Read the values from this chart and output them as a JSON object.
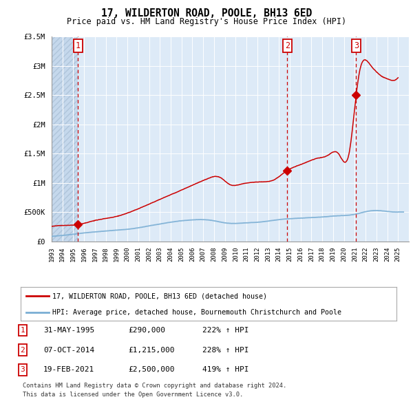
{
  "title": "17, WILDERTON ROAD, POOLE, BH13 6ED",
  "subtitle": "Price paid vs. HM Land Registry's House Price Index (HPI)",
  "legend_line1": "17, WILDERTON ROAD, POOLE, BH13 6ED (detached house)",
  "legend_line2": "HPI: Average price, detached house, Bournemouth Christchurch and Poole",
  "footnote1": "Contains HM Land Registry data © Crown copyright and database right 2024.",
  "footnote2": "This data is licensed under the Open Government Licence v3.0.",
  "sale_color": "#cc0000",
  "hpi_color": "#7aaed4",
  "background_plot": "#ddeaf7",
  "background_hatch": "#c5d8ec",
  "grid_color": "#ffffff",
  "ylim": [
    0,
    3500000
  ],
  "yticks": [
    0,
    500000,
    1000000,
    1500000,
    2000000,
    2500000,
    3000000,
    3500000
  ],
  "ytick_labels": [
    "£0",
    "£500K",
    "£1M",
    "£1.5M",
    "£2M",
    "£2.5M",
    "£3M",
    "£3.5M"
  ],
  "sales": [
    {
      "date_num": 1995.42,
      "price": 290000,
      "label": "1"
    },
    {
      "date_num": 2014.77,
      "price": 1215000,
      "label": "2"
    },
    {
      "date_num": 2021.13,
      "price": 2500000,
      "label": "3"
    }
  ],
  "sale_annotations": [
    {
      "num": "1",
      "date": "31-MAY-1995",
      "price": "£290,000",
      "change": "222% ↑ HPI"
    },
    {
      "num": "2",
      "date": "07-OCT-2014",
      "price": "£1,215,000",
      "change": "228% ↑ HPI"
    },
    {
      "num": "3",
      "date": "19-FEB-2021",
      "price": "£2,500,000",
      "change": "419% ↑ HPI"
    }
  ],
  "xmin": 1993,
  "xmax": 2026
}
